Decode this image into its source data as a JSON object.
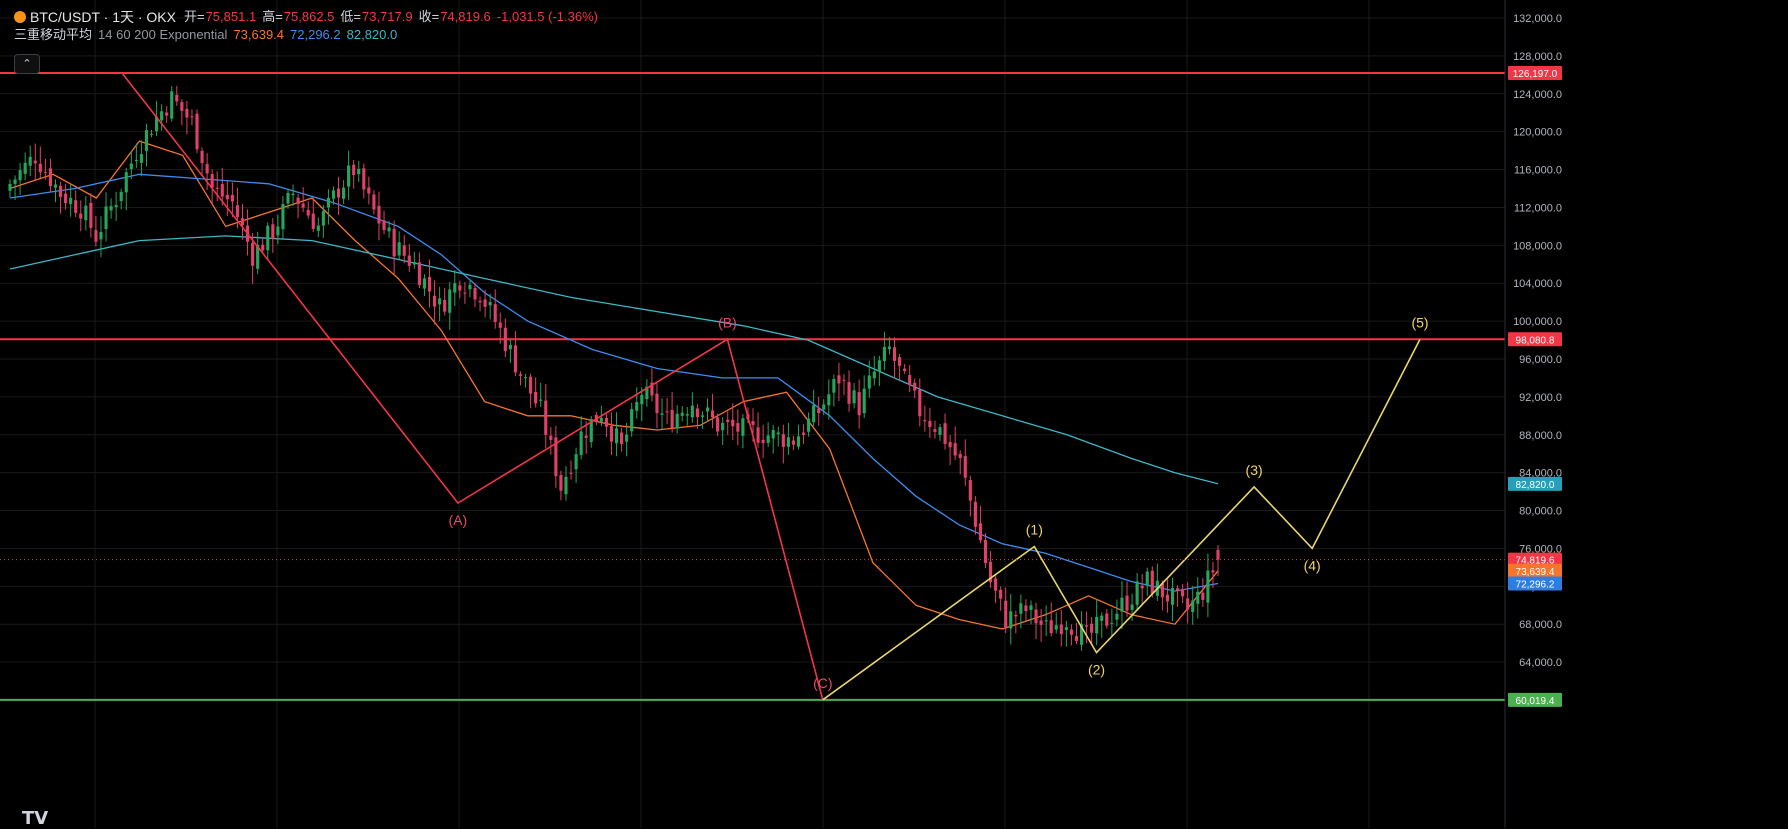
{
  "header": {
    "symbol": "BTC/USDT · 1天 · OKX",
    "open_label": "开=",
    "open": "75,851.1",
    "high_label": "高=",
    "high": "75,862.5",
    "low_label": "低=",
    "low": "73,717.9",
    "close_label": "收=",
    "close": "74,819.6",
    "change": "-1,031.5 (-1.36%)"
  },
  "indicator": {
    "name": "三重移动平均",
    "params": "14 60 200 Exponential",
    "ema14": "73,639.4",
    "ema60": "72,296.2",
    "ema200": "82,820.0"
  },
  "colors": {
    "background": "#000000",
    "up": "#26a65b",
    "down": "#e0416a",
    "ema14": "#f7752b",
    "ema60": "#3d8cf0",
    "ema200": "#3fb6c6",
    "resistance": "#f23645",
    "support": "#4caf50",
    "abc_wave": "#f23645",
    "impulse_wave": "#e8d66a"
  },
  "chart_data": {
    "type": "line",
    "title": "BTC/USDT · 1天 · OKX",
    "ylim": [
      60000,
      132000
    ],
    "y_ticks": [
      64000,
      68000,
      72000,
      76000,
      80000,
      84000,
      88000,
      92000,
      96000,
      100000,
      104000,
      108000,
      112000,
      116000,
      120000,
      124000,
      128000,
      132000
    ],
    "y_tick_labels": [
      "64,000.0",
      "68,000.0",
      "72,000.0",
      "76,000.0",
      "80,000.0",
      "84,000.0",
      "88,000.0",
      "92,000.0",
      "96,000.0",
      "100,000.0",
      "104,000.0",
      "108,000.0",
      "112,000.0",
      "116,000.0",
      "120,000.0",
      "124,000.0",
      "128,000.0",
      "132,000.0"
    ],
    "grid": true,
    "bar_count": 240,
    "candle_anchors": [
      {
        "bar": 0,
        "close": 114500
      },
      {
        "bar": 5,
        "close": 117500
      },
      {
        "bar": 10,
        "close": 113500
      },
      {
        "bar": 14,
        "close": 112000
      },
      {
        "bar": 17,
        "close": 109000
      },
      {
        "bar": 21,
        "close": 113000
      },
      {
        "bar": 25,
        "close": 118000
      },
      {
        "bar": 29,
        "close": 121500
      },
      {
        "bar": 32,
        "close": 123500
      },
      {
        "bar": 36,
        "close": 121000
      },
      {
        "bar": 40,
        "close": 114000
      },
      {
        "bar": 44,
        "close": 112500
      },
      {
        "bar": 48,
        "close": 107000
      },
      {
        "bar": 52,
        "close": 109500
      },
      {
        "bar": 56,
        "close": 113500
      },
      {
        "bar": 61,
        "close": 110000
      },
      {
        "bar": 65,
        "close": 114000
      },
      {
        "bar": 68,
        "close": 116000
      },
      {
        "bar": 72,
        "close": 111500
      },
      {
        "bar": 76,
        "close": 108000
      },
      {
        "bar": 80,
        "close": 106000
      },
      {
        "bar": 85,
        "close": 101500
      },
      {
        "bar": 89,
        "close": 104500
      },
      {
        "bar": 93,
        "close": 103000
      },
      {
        "bar": 97,
        "close": 99000
      },
      {
        "bar": 101,
        "close": 94500
      },
      {
        "bar": 105,
        "close": 90500
      },
      {
        "bar": 109,
        "close": 82500
      },
      {
        "bar": 113,
        "close": 88000
      },
      {
        "bar": 117,
        "close": 90500
      },
      {
        "bar": 121,
        "close": 86500
      },
      {
        "bar": 125,
        "close": 92500
      },
      {
        "bar": 130,
        "close": 89500
      },
      {
        "bar": 135,
        "close": 91500
      },
      {
        "bar": 140,
        "close": 89000
      },
      {
        "bar": 145,
        "close": 88500
      },
      {
        "bar": 150,
        "close": 88000
      },
      {
        "bar": 155,
        "close": 87500
      },
      {
        "bar": 160,
        "close": 90500
      },
      {
        "bar": 164,
        "close": 94000
      },
      {
        "bar": 168,
        "close": 91000
      },
      {
        "bar": 171,
        "close": 94500
      },
      {
        "bar": 174,
        "close": 97000
      },
      {
        "bar": 177,
        "close": 93500
      },
      {
        "bar": 180,
        "close": 90500
      },
      {
        "bar": 184,
        "close": 88500
      },
      {
        "bar": 188,
        "close": 85000
      },
      {
        "bar": 191,
        "close": 79000
      },
      {
        "bar": 194,
        "close": 72500
      },
      {
        "bar": 197,
        "close": 68500
      },
      {
        "bar": 201,
        "close": 69500
      },
      {
        "bar": 205,
        "close": 67500
      },
      {
        "bar": 209,
        "close": 68500
      },
      {
        "bar": 213,
        "close": 66500
      },
      {
        "bar": 217,
        "close": 68500
      },
      {
        "bar": 221,
        "close": 70500
      },
      {
        "bar": 225,
        "close": 72500
      },
      {
        "bar": 229,
        "close": 71000
      },
      {
        "bar": 233,
        "close": 69500
      },
      {
        "bar": 236,
        "close": 71500
      },
      {
        "bar": 239,
        "close": 74819.6
      }
    ],
    "candles_extended": [
      {
        "bar": 240,
        "close": 73800
      },
      {
        "bar": 243,
        "close": 72000
      },
      {
        "bar": 246,
        "close": 71000
      },
      {
        "bar": 249,
        "close": 69000
      },
      {
        "bar": 252,
        "close": 68500
      },
      {
        "bar": 255,
        "close": 66800
      },
      {
        "bar": 258,
        "close": 67500
      },
      {
        "bar": 261,
        "close": 66000
      },
      {
        "bar": 264,
        "close": 68000
      },
      {
        "bar": 267,
        "close": 70000
      },
      {
        "bar": 270,
        "close": 71500
      },
      {
        "bar": 273,
        "close": 73500
      },
      {
        "bar": 276,
        "close": 76500
      },
      {
        "bar": 279,
        "close": 75000
      }
    ],
    "series": [
      {
        "name": "EMA 14",
        "color": "#f7752b",
        "points": [
          {
            "bar": 0,
            "y": 114000
          },
          {
            "bar": 10,
            "y": 115500
          },
          {
            "bar": 20,
            "y": 113000
          },
          {
            "bar": 30,
            "y": 119000
          },
          {
            "bar": 40,
            "y": 117500
          },
          {
            "bar": 50,
            "y": 110000
          },
          {
            "bar": 60,
            "y": 111500
          },
          {
            "bar": 70,
            "y": 113000
          },
          {
            "bar": 80,
            "y": 108500
          },
          {
            "bar": 90,
            "y": 104500
          },
          {
            "bar": 100,
            "y": 99000
          },
          {
            "bar": 110,
            "y": 91500
          },
          {
            "bar": 120,
            "y": 90000
          },
          {
            "bar": 130,
            "y": 90000
          },
          {
            "bar": 140,
            "y": 89000
          },
          {
            "bar": 150,
            "y": 88500
          },
          {
            "bar": 160,
            "y": 89000
          },
          {
            "bar": 170,
            "y": 91500
          },
          {
            "bar": 180,
            "y": 92500
          },
          {
            "bar": 190,
            "y": 86500
          },
          {
            "bar": 200,
            "y": 74500
          },
          {
            "bar": 210,
            "y": 70000
          },
          {
            "bar": 220,
            "y": 68500
          },
          {
            "bar": 230,
            "y": 67500
          },
          {
            "bar": 240,
            "y": 69000
          },
          {
            "bar": 250,
            "y": 71000
          },
          {
            "bar": 260,
            "y": 69000
          },
          {
            "bar": 270,
            "y": 68000
          },
          {
            "bar": 280,
            "y": 73639.4
          }
        ]
      },
      {
        "name": "EMA 60",
        "color": "#3d8cf0",
        "points": [
          {
            "bar": 0,
            "y": 113000
          },
          {
            "bar": 15,
            "y": 114000
          },
          {
            "bar": 30,
            "y": 115500
          },
          {
            "bar": 45,
            "y": 115000
          },
          {
            "bar": 60,
            "y": 114500
          },
          {
            "bar": 75,
            "y": 112500
          },
          {
            "bar": 90,
            "y": 110000
          },
          {
            "bar": 100,
            "y": 107000
          },
          {
            "bar": 110,
            "y": 103000
          },
          {
            "bar": 120,
            "y": 100000
          },
          {
            "bar": 135,
            "y": 97000
          },
          {
            "bar": 150,
            "y": 95000
          },
          {
            "bar": 165,
            "y": 94000
          },
          {
            "bar": 178,
            "y": 94000
          },
          {
            "bar": 190,
            "y": 90000
          },
          {
            "bar": 200,
            "y": 85500
          },
          {
            "bar": 210,
            "y": 81500
          },
          {
            "bar": 220,
            "y": 78500
          },
          {
            "bar": 230,
            "y": 76500
          },
          {
            "bar": 240,
            "y": 75500
          },
          {
            "bar": 250,
            "y": 74000
          },
          {
            "bar": 260,
            "y": 72500
          },
          {
            "bar": 270,
            "y": 71500
          },
          {
            "bar": 280,
            "y": 72296.2
          }
        ]
      },
      {
        "name": "EMA 200",
        "color": "#3fb6c6",
        "points": [
          {
            "bar": 0,
            "y": 105500
          },
          {
            "bar": 15,
            "y": 107000
          },
          {
            "bar": 30,
            "y": 108500
          },
          {
            "bar": 50,
            "y": 109000
          },
          {
            "bar": 70,
            "y": 108500
          },
          {
            "bar": 90,
            "y": 106500
          },
          {
            "bar": 110,
            "y": 104500
          },
          {
            "bar": 130,
            "y": 102500
          },
          {
            "bar": 150,
            "y": 101000
          },
          {
            "bar": 170,
            "y": 99500
          },
          {
            "bar": 185,
            "y": 98000
          },
          {
            "bar": 200,
            "y": 95000
          },
          {
            "bar": 215,
            "y": 92000
          },
          {
            "bar": 230,
            "y": 90000
          },
          {
            "bar": 245,
            "y": 88000
          },
          {
            "bar": 260,
            "y": 85500
          },
          {
            "bar": 270,
            "y": 84000
          },
          {
            "bar": 280,
            "y": 82820.0
          }
        ]
      }
    ],
    "horizontal_lines": [
      {
        "label": "126,197.0",
        "y": 126197.0,
        "color": "#f23645"
      },
      {
        "label": "98,080.8",
        "y": 98080.8,
        "color": "#f23645"
      },
      {
        "label": "60,019.4",
        "y": 60019.4,
        "color": "#4caf50"
      }
    ],
    "price_tags": [
      {
        "label": "126,197.0",
        "y": 126197.0,
        "bg": "#f23645"
      },
      {
        "label": "98,080.8",
        "y": 98080.8,
        "bg": "#f23645"
      },
      {
        "label": "82,820.0",
        "y": 82820.0,
        "bg": "#26a0b8"
      },
      {
        "label": "74,819.6",
        "y": 74819.6,
        "bg": "#f23645"
      },
      {
        "label": "73,639.4",
        "y": 73639.4,
        "bg": "#f7752b"
      },
      {
        "label": "72,296.2",
        "y": 72296.2,
        "bg": "#2f7de1"
      },
      {
        "label": "60,019.4",
        "y": 60019.4,
        "bg": "#4caf50"
      }
    ],
    "abc_wave": [
      {
        "bar": 27,
        "y": 126197
      },
      {
        "bar": 108,
        "y": 80800,
        "label": "(A)"
      },
      {
        "bar": 173,
        "y": 98080.8,
        "label": "(B)"
      },
      {
        "bar": 196,
        "y": 60019.4,
        "label": "(C)"
      }
    ],
    "impulse_wave": [
      {
        "bar": 196,
        "y": 60019.4
      },
      {
        "bar": 247,
        "y": 76200,
        "label": "(1)"
      },
      {
        "bar": 262,
        "y": 65000,
        "label": "(2)"
      },
      {
        "bar": 300,
        "y": 82500,
        "label": "(3)"
      },
      {
        "bar": 314,
        "y": 76000,
        "label": "(4)"
      },
      {
        "bar": 340,
        "y": 98080.8,
        "label": "(5)"
      }
    ]
  }
}
